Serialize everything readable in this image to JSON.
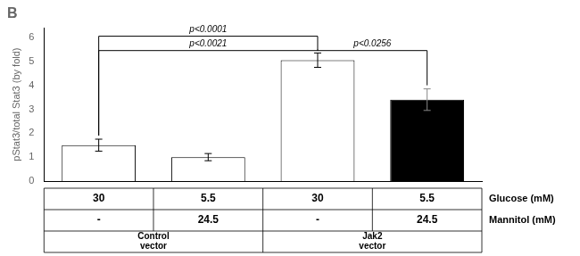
{
  "chart_data": {
    "type": "bar",
    "title": "B",
    "categories": [
      null,
      null,
      null,
      null
    ],
    "values": [
      1.5,
      1.0,
      5.05,
      3.4
    ],
    "errors": [
      0.25,
      0.15,
      0.3,
      0.45
    ],
    "colors": [
      "white",
      "white",
      "white",
      "black"
    ],
    "ylabel": "pStat3/total Stat3 (by fold)",
    "ylim": [
      0,
      6.4
    ],
    "yticks": [
      0,
      1,
      2,
      3,
      4,
      5,
      6
    ],
    "grid": false,
    "tick_labels": "y",
    "annotations": [
      {
        "text": "p<0.0001",
        "x1": 0,
        "x2": 2,
        "y": 6.05
      },
      {
        "text": "p<0.0021",
        "x1": 0,
        "x2": 2,
        "y": 5.45
      },
      {
        "text": "p<0.0256",
        "x1": 2,
        "x2": 3,
        "y": 5.45
      }
    ],
    "table": {
      "rows": [
        {
          "label": "Glucose (mM)",
          "values": [
            "30",
            "5.5",
            "30",
            "5.5"
          ]
        },
        {
          "label": "Mannitol (mM)",
          "values": [
            "-",
            "24.5",
            "-",
            "24.5"
          ]
        }
      ],
      "groups": [
        "Control\nvector",
        "Jak2\nvector"
      ]
    }
  }
}
